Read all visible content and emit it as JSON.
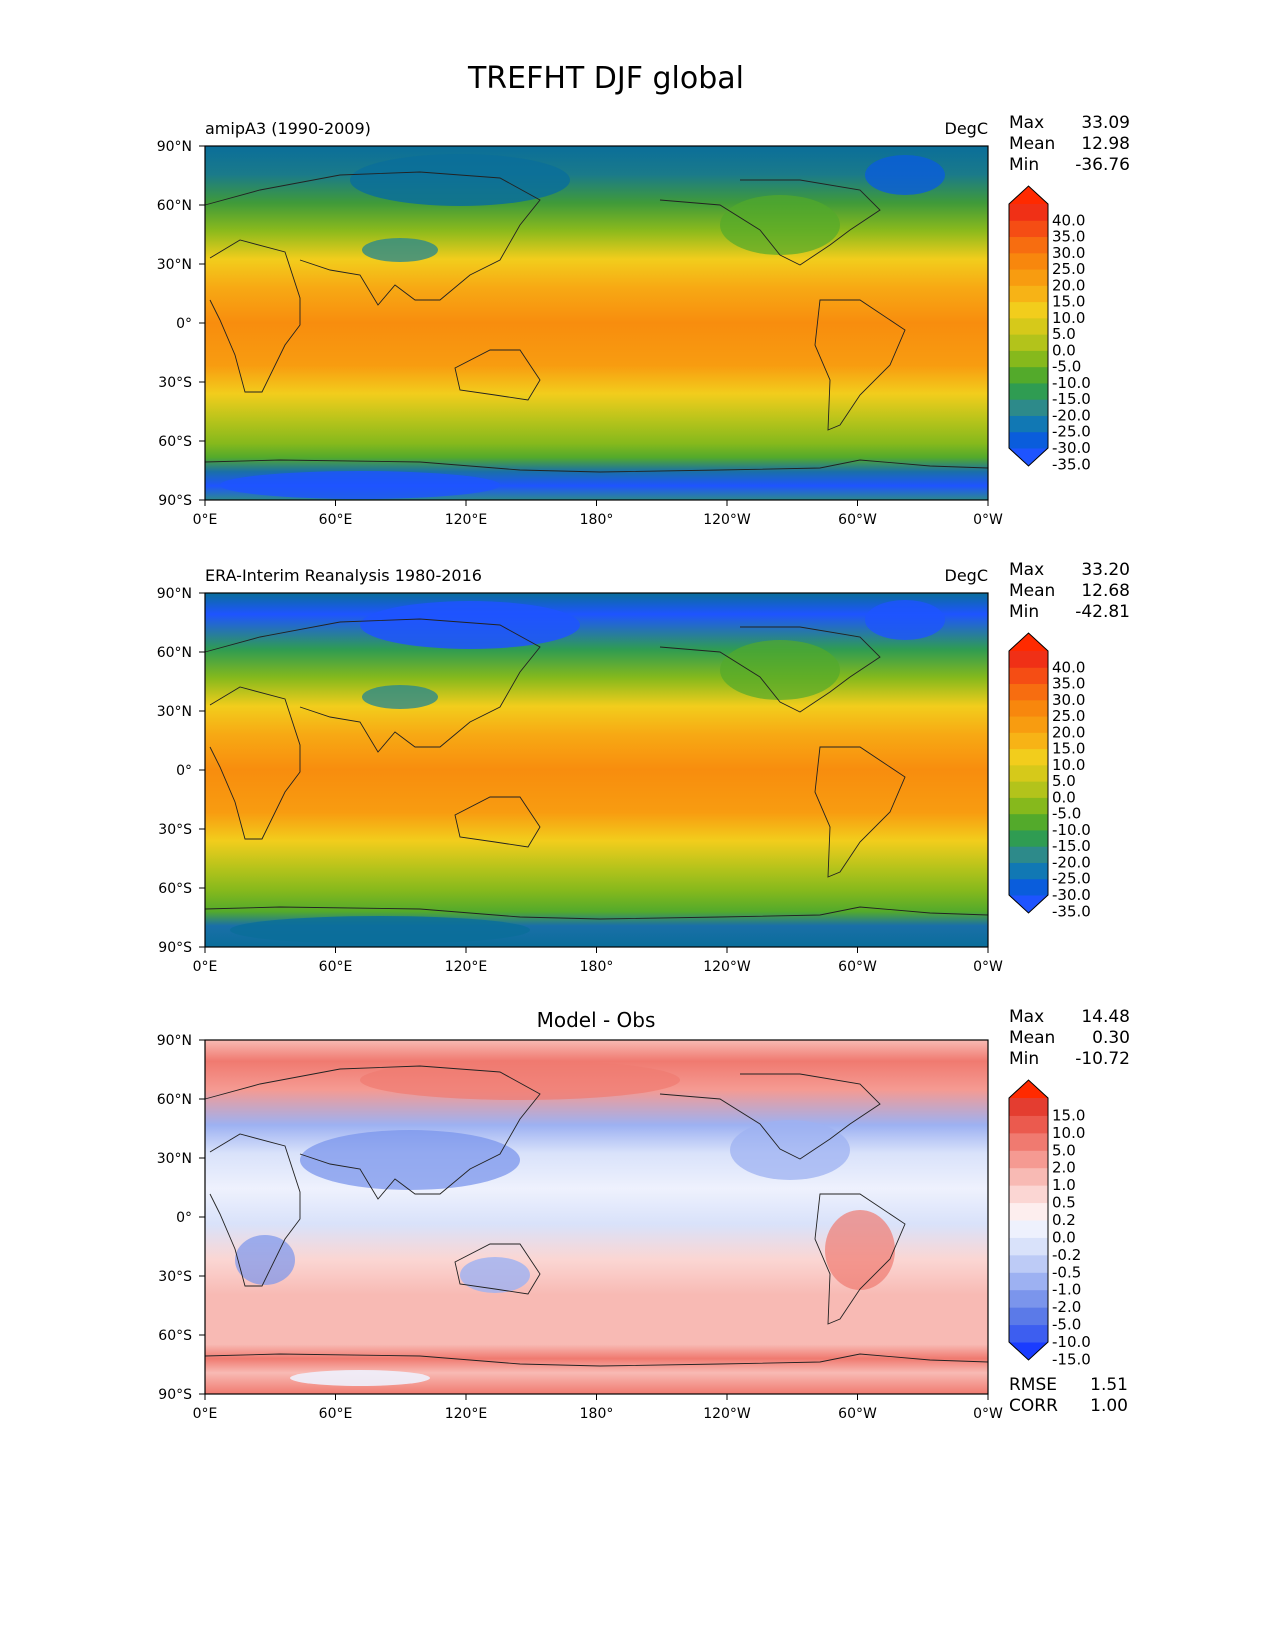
{
  "figure": {
    "title": "TREFHT DJF global"
  },
  "axes": {
    "lat_ticks": [
      "90°N",
      "60°N",
      "30°N",
      "0°",
      "30°S",
      "60°S",
      "90°S"
    ],
    "lon_ticks": [
      "0°E",
      "60°E",
      "120°E",
      "180°",
      "120°W",
      "60°W",
      "0°W"
    ]
  },
  "stats_labels": {
    "max": "Max",
    "mean": "Mean",
    "min": "Min",
    "rmse": "RMSE",
    "corr": "CORR"
  },
  "panels": [
    {
      "id": "test",
      "left_title": "amipA3 (1990-2009)",
      "center_title": "",
      "units": "DegC",
      "stats": {
        "max": "33.09",
        "mean": "12.98",
        "min": "-36.76"
      },
      "colorbar": {
        "labels": [
          "40.0",
          "35.0",
          "30.0",
          "25.0",
          "20.0",
          "15.0",
          "10.0",
          "5.0",
          "0.0",
          "-5.0",
          "-10.0",
          "-15.0",
          "-20.0",
          "-25.0",
          "-30.0",
          "-35.0"
        ],
        "colors": [
          "#1e54ff",
          "#0a5ddc",
          "#1178b4",
          "#2d8a8a",
          "#2f9c52",
          "#53aa2b",
          "#86b91c",
          "#b3c31b",
          "#d6c91a",
          "#f2cd1c",
          "#f7b316",
          "#f89c10",
          "#f8870d",
          "#f76d10",
          "#f54d14",
          "#f03016",
          "#ff2a00"
        ]
      }
    },
    {
      "id": "ref",
      "left_title": "ERA-Interim Reanalysis 1980-2016",
      "center_title": "",
      "units": "DegC",
      "stats": {
        "max": "33.20",
        "mean": "12.68",
        "min": "-42.81"
      },
      "colorbar": {
        "labels": [
          "40.0",
          "35.0",
          "30.0",
          "25.0",
          "20.0",
          "15.0",
          "10.0",
          "5.0",
          "0.0",
          "-5.0",
          "-10.0",
          "-15.0",
          "-20.0",
          "-25.0",
          "-30.0",
          "-35.0"
        ],
        "colors": [
          "#1e54ff",
          "#0a5ddc",
          "#1178b4",
          "#2d8a8a",
          "#2f9c52",
          "#53aa2b",
          "#86b91c",
          "#b3c31b",
          "#d6c91a",
          "#f2cd1c",
          "#f7b316",
          "#f89c10",
          "#f8870d",
          "#f76d10",
          "#f54d14",
          "#f03016",
          "#ff2a00"
        ]
      }
    },
    {
      "id": "diff",
      "left_title": "",
      "center_title": "Model - Obs",
      "units": "",
      "stats": {
        "max": "14.48",
        "mean": "0.30",
        "min": "-10.72"
      },
      "metrics": {
        "rmse": "1.51",
        "corr": "1.00"
      },
      "colorbar": {
        "labels": [
          "15.0",
          "10.0",
          "5.0",
          "2.0",
          "1.0",
          "0.5",
          "0.2",
          "0.0",
          "-0.2",
          "-0.5",
          "-1.0",
          "-2.0",
          "-5.0",
          "-10.0",
          "-15.0"
        ],
        "colors": [
          "#1a3cff",
          "#3d5ef0",
          "#5b7ae8",
          "#7b95ec",
          "#9db1f2",
          "#bdcbf6",
          "#d9e2fa",
          "#eef1fd",
          "#fdeeee",
          "#fbd6d3",
          "#f8bab4",
          "#f59a92",
          "#f07a70",
          "#eb5a4e",
          "#e43d30",
          "#ff2a00"
        ]
      }
    }
  ]
}
